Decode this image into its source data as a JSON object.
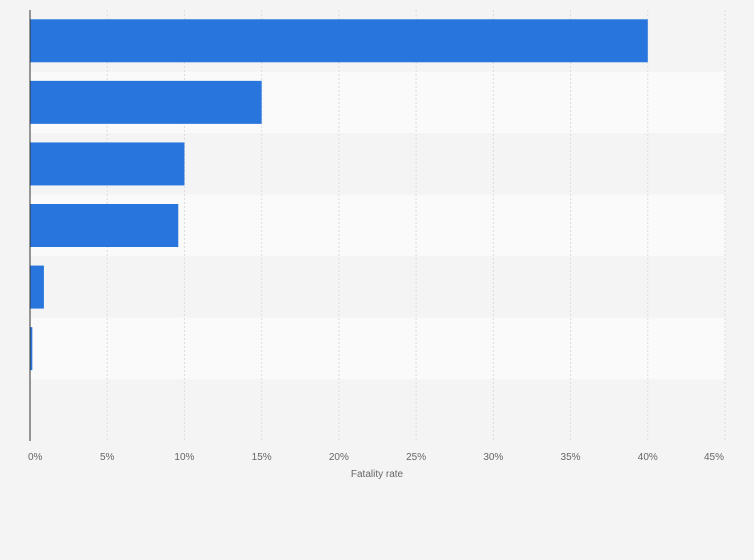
{
  "chart_data": {
    "type": "bar",
    "orientation": "horizontal",
    "categories": [
      "",
      "",
      "",
      "",
      "",
      "",
      ""
    ],
    "values": [
      40,
      15,
      10,
      9.6,
      0.9,
      0.15,
      0
    ],
    "xlabel": "Fatality rate",
    "ylabel": "",
    "xlim": [
      0,
      45
    ],
    "xticks": [
      0,
      5,
      10,
      15,
      20,
      25,
      30,
      35,
      40,
      45
    ],
    "tick_labels": [
      "0%",
      "5%",
      "10%",
      "15%",
      "20%",
      "25%",
      "30%",
      "35%",
      "40%",
      "45%"
    ],
    "grid": true,
    "bar_color": "#2876dd",
    "band_colors": [
      "#f4f4f4",
      "#fafafa"
    ],
    "gridline_color": "#dddddd",
    "axis_color": "#333333"
  }
}
